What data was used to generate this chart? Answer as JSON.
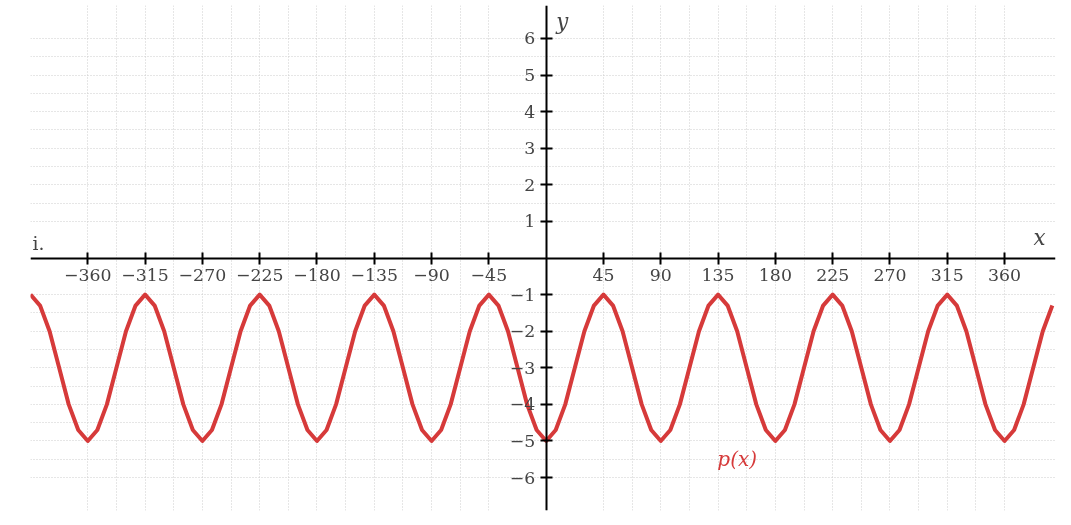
{
  "chart_data": {
    "type": "line",
    "xlabel": "x",
    "ylabel": "y",
    "annotations": [
      "i."
    ],
    "xlim": [
      -405,
      400
    ],
    "ylim": [
      -6.9,
      6.9
    ],
    "xticks": [
      {
        "value": -360,
        "label": "−360"
      },
      {
        "value": -315,
        "label": "−315"
      },
      {
        "value": -270,
        "label": "−270"
      },
      {
        "value": -225,
        "label": "−225"
      },
      {
        "value": -180,
        "label": "−180"
      },
      {
        "value": -135,
        "label": "−135"
      },
      {
        "value": -90,
        "label": "−90"
      },
      {
        "value": -45,
        "label": "−45"
      },
      45,
      90,
      135,
      180,
      225,
      270,
      315,
      360
    ],
    "yticks": [
      {
        "value": -6,
        "label": "−6"
      },
      {
        "value": -5,
        "label": "−5"
      },
      {
        "value": -4,
        "label": "−4"
      },
      {
        "value": -3,
        "label": "−3"
      },
      {
        "value": -2,
        "label": "−2"
      },
      {
        "value": -1,
        "label": "−1"
      },
      1,
      2,
      3,
      4,
      5,
      6
    ],
    "grid": true,
    "line_style": "solid",
    "marker": "none",
    "series": [
      {
        "name": "p(x)",
        "color": "#d63a3a",
        "x": [
          -405,
          -397.5,
          -390,
          -382.5,
          -375,
          -367.5,
          -360,
          -352.5,
          -345,
          -337.5,
          -330,
          -322.5,
          -315,
          -307.5,
          -300,
          -292.5,
          -285,
          -277.5,
          -270,
          -262.5,
          -255,
          -247.5,
          -240,
          -232.5,
          -225,
          -217.5,
          -210,
          -202.5,
          -195,
          -187.5,
          -180,
          -172.5,
          -165,
          -157.5,
          -150,
          -142.5,
          -135,
          -127.5,
          -120,
          -112.5,
          -105,
          -97.5,
          -90,
          -82.5,
          -75,
          -67.5,
          -60,
          -52.5,
          -45,
          -37.5,
          -30,
          -22.5,
          -15,
          -7.5,
          0,
          7.5,
          15,
          22.5,
          30,
          37.5,
          45,
          52.5,
          60,
          67.5,
          75,
          82.5,
          90,
          97.5,
          105,
          112.5,
          120,
          127.5,
          135,
          142.5,
          150,
          157.5,
          165,
          172.5,
          180,
          187.5,
          195,
          202.5,
          210,
          217.5,
          225,
          232.5,
          240,
          247.5,
          255,
          262.5,
          270,
          277.5,
          285,
          292.5,
          300,
          307.5,
          315,
          322.5,
          330,
          337.5,
          345,
          352.5,
          360,
          367.5,
          375,
          382.5,
          390,
          397.5
        ],
        "values": [
          -1,
          -1.3,
          -2,
          -3,
          -4,
          -4.7,
          -5,
          -4.7,
          -4,
          -3,
          -2,
          -1.3,
          -1,
          -1.3,
          -2,
          -3,
          -4,
          -4.7,
          -5,
          -4.7,
          -4,
          -3,
          -2,
          -1.3,
          -1,
          -1.3,
          -2,
          -3,
          -4,
          -4.7,
          -5,
          -4.7,
          -4,
          -3,
          -2,
          -1.3,
          -1,
          -1.3,
          -2,
          -3,
          -4,
          -4.7,
          -5,
          -4.7,
          -4,
          -3,
          -2,
          -1.3,
          -1,
          -1.3,
          -2,
          -3,
          -4,
          -4.7,
          -5,
          -4.7,
          -4,
          -3,
          -2,
          -1.3,
          -1,
          -1.3,
          -2,
          -3,
          -4,
          -4.7,
          -5,
          -4.7,
          -4,
          -3,
          -2,
          -1.3,
          -1,
          -1.3,
          -2,
          -3,
          -4,
          -4.7,
          -5,
          -4.7,
          -4,
          -3,
          -2,
          -1.3,
          -1,
          -1.3,
          -2,
          -3,
          -4,
          -4.7,
          -5,
          -4.7,
          -4,
          -3,
          -2,
          -1.3,
          -1,
          -1.3,
          -2,
          -3,
          -4,
          -4.7,
          -5,
          -4.7,
          -4,
          -3,
          -2,
          -1.3
        ]
      }
    ]
  }
}
